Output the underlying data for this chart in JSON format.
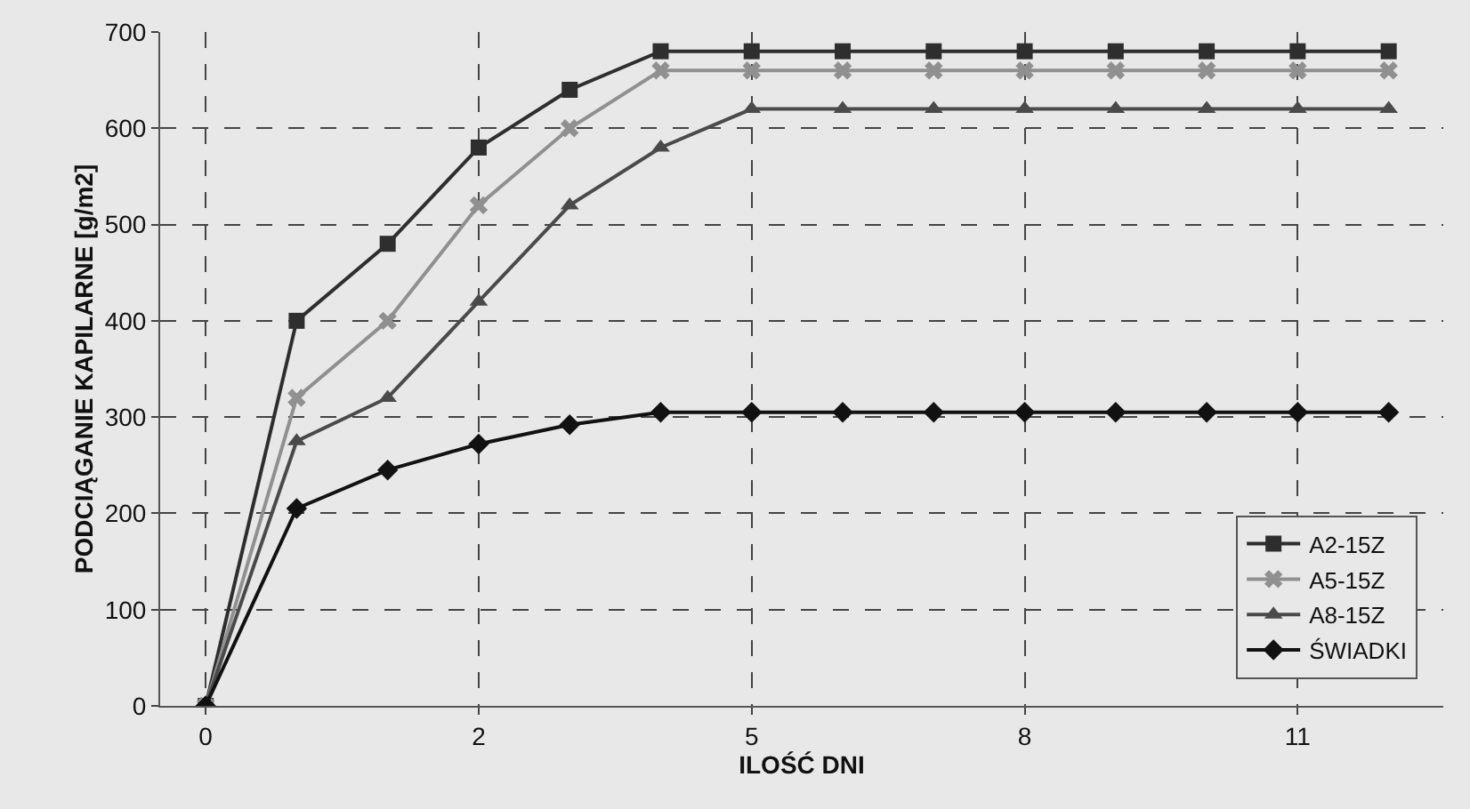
{
  "chart_data": {
    "type": "line",
    "xlabel": "ILOŚĆ DNI",
    "ylabel": "PODCIĄGANIE KAPILARNE [g/m2]",
    "categories": [
      "0",
      null,
      null,
      "2",
      null,
      null,
      "5",
      null,
      null,
      "8",
      null,
      null,
      "11",
      null
    ],
    "ylim": [
      0,
      700
    ],
    "yticks": [
      0,
      100,
      200,
      300,
      400,
      500,
      600,
      700
    ],
    "grid": true,
    "legend": "bottom right",
    "line_style": "solid",
    "series": [
      {
        "name": "A2-15Z",
        "color": "#2e2e2e",
        "marker": "square",
        "values": [
          0,
          400,
          480,
          580,
          640,
          680,
          680,
          680,
          680,
          680,
          680,
          680,
          680,
          680
        ]
      },
      {
        "name": "A5-15Z",
        "color": "#909090",
        "marker": "cross",
        "values": [
          0,
          320,
          400,
          520,
          600,
          660,
          660,
          660,
          660,
          660,
          660,
          660,
          660,
          660
        ]
      },
      {
        "name": "A8-15Z",
        "color": "#4a4a4a",
        "marker": "triangle",
        "values": [
          0,
          275,
          320,
          420,
          520,
          580,
          620,
          620,
          620,
          620,
          620,
          620,
          620,
          620
        ]
      },
      {
        "name": "ŚWIADKI",
        "color": "#111111",
        "marker": "diamond",
        "values": [
          0,
          205,
          245,
          272,
          292,
          305,
          305,
          305,
          305,
          305,
          305,
          305,
          305,
          305
        ]
      }
    ]
  }
}
